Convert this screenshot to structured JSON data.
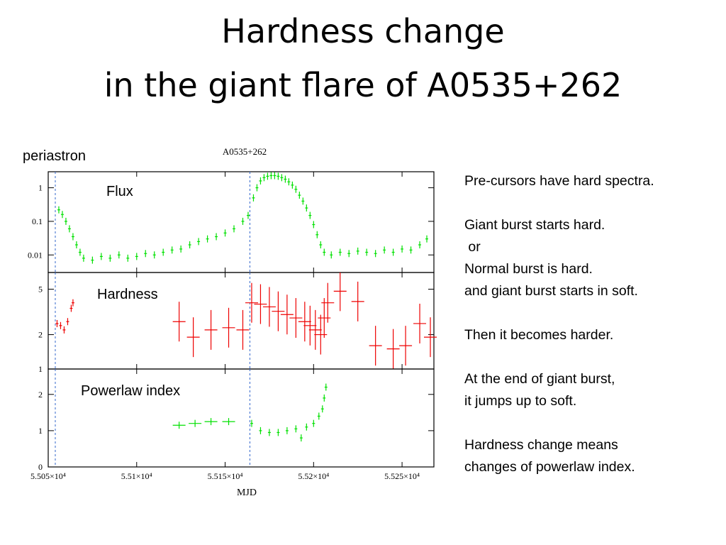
{
  "slide": {
    "title_line1": "Hardness change",
    "title_line2": "in the giant flare of A0535+262",
    "periastron_label": "periastron",
    "notes": [
      "Pre-cursors have hard spectra.",
      "",
      "Giant burst starts hard.",
      " or",
      "Normal burst is hard.",
      "and giant burst starts in soft.",
      "",
      "Then it becomes harder.",
      "",
      "At the end of giant burst,",
      "it jumps up to soft.",
      "",
      "Hardness change means",
      "changes of powerlaw index."
    ]
  },
  "colors": {
    "flux": "#00e000",
    "hardness": "#ee0000",
    "index": "#00e000",
    "periastron": "#3366cc",
    "axis": "#000000"
  },
  "chart_data": [
    {
      "type": "scatter",
      "title": "A0535+262",
      "panel_label": "Flux",
      "xlabel": "",
      "ylabel": "",
      "yscale": "log",
      "xlim": [
        55050,
        55268
      ],
      "ylim": [
        0.003,
        3.0
      ],
      "yticks": [
        {
          "v": 0.01,
          "label": "0.01"
        },
        {
          "v": 0.1,
          "label": "0.1"
        },
        {
          "v": 1,
          "label": "1"
        }
      ],
      "periastron_mjd": [
        55054,
        55164
      ],
      "series": [
        {
          "name": "",
          "color": "#00e000",
          "points": [
            [
              55056,
              0.22
            ],
            [
              55058,
              0.16
            ],
            [
              55060,
              0.1
            ],
            [
              55062,
              0.06
            ],
            [
              55064,
              0.035
            ],
            [
              55066,
              0.02
            ],
            [
              55068,
              0.012
            ],
            [
              55070,
              0.008
            ],
            [
              55075,
              0.007
            ],
            [
              55080,
              0.009
            ],
            [
              55085,
              0.008
            ],
            [
              55090,
              0.01
            ],
            [
              55095,
              0.008
            ],
            [
              55100,
              0.009
            ],
            [
              55105,
              0.011
            ],
            [
              55110,
              0.01
            ],
            [
              55115,
              0.012
            ],
            [
              55120,
              0.014
            ],
            [
              55125,
              0.015
            ],
            [
              55130,
              0.02
            ],
            [
              55135,
              0.025
            ],
            [
              55140,
              0.03
            ],
            [
              55145,
              0.035
            ],
            [
              55150,
              0.045
            ],
            [
              55155,
              0.06
            ],
            [
              55160,
              0.1
            ],
            [
              55163,
              0.15
            ],
            [
              55166,
              0.5
            ],
            [
              55168,
              1.0
            ],
            [
              55170,
              1.6
            ],
            [
              55172,
              2.0
            ],
            [
              55174,
              2.2
            ],
            [
              55176,
              2.3
            ],
            [
              55178,
              2.3
            ],
            [
              55180,
              2.2
            ],
            [
              55182,
              2.0
            ],
            [
              55184,
              1.8
            ],
            [
              55186,
              1.5
            ],
            [
              55188,
              1.2
            ],
            [
              55190,
              0.9
            ],
            [
              55192,
              0.6
            ],
            [
              55194,
              0.4
            ],
            [
              55196,
              0.25
            ],
            [
              55198,
              0.15
            ],
            [
              55200,
              0.08
            ],
            [
              55202,
              0.04
            ],
            [
              55204,
              0.02
            ],
            [
              55206,
              0.012
            ],
            [
              55210,
              0.01
            ],
            [
              55215,
              0.012
            ],
            [
              55220,
              0.011
            ],
            [
              55225,
              0.013
            ],
            [
              55230,
              0.012
            ],
            [
              55235,
              0.011
            ],
            [
              55240,
              0.014
            ],
            [
              55245,
              0.012
            ],
            [
              55250,
              0.015
            ],
            [
              55255,
              0.014
            ],
            [
              55260,
              0.02
            ],
            [
              55264,
              0.03
            ]
          ]
        }
      ]
    },
    {
      "type": "scatter",
      "panel_label": "Hardness",
      "xlabel": "",
      "ylabel": "",
      "yscale": "log",
      "xlim": [
        55050,
        55268
      ],
      "ylim": [
        1,
        7
      ],
      "yticks": [
        {
          "v": 1,
          "label": "1"
        },
        {
          "v": 2,
          "label": "2"
        },
        {
          "v": 5,
          "label": "5"
        }
      ],
      "periastron_mjd": [
        55054,
        55164
      ],
      "series": [
        {
          "name": "",
          "color": "#ee0000",
          "points": [
            [
              55055,
              2.5
            ],
            [
              55057,
              2.4
            ],
            [
              55059,
              2.2
            ],
            [
              55061,
              2.6
            ],
            [
              55063,
              3.4
            ],
            [
              55064,
              3.8
            ],
            [
              55124,
              2.6
            ],
            [
              55132,
              1.9
            ],
            [
              55142,
              2.2
            ],
            [
              55152,
              2.3
            ],
            [
              55160,
              2.2
            ],
            [
              55165,
              3.8
            ],
            [
              55170,
              3.7
            ],
            [
              55175,
              3.5
            ],
            [
              55180,
              3.2
            ],
            [
              55185,
              3.0
            ],
            [
              55190,
              2.8
            ],
            [
              55195,
              2.6
            ],
            [
              55198,
              2.4
            ],
            [
              55201,
              2.2
            ],
            [
              55204,
              2.0
            ],
            [
              55206,
              2.8
            ],
            [
              55208,
              3.8
            ],
            [
              55215,
              4.8
            ],
            [
              55225,
              3.9
            ],
            [
              55235,
              1.6
            ],
            [
              55245,
              1.5
            ],
            [
              55252,
              1.6
            ],
            [
              55260,
              2.5
            ],
            [
              55266,
              1.9
            ]
          ]
        }
      ]
    },
    {
      "type": "scatter",
      "panel_label": "Powerlaw index",
      "xlabel": "MJD",
      "ylabel": "",
      "xlim": [
        55050,
        55268
      ],
      "ylim": [
        0,
        2.7
      ],
      "xticks": [
        {
          "v": 55050,
          "label": "5.505×10⁴"
        },
        {
          "v": 55100,
          "label": "5.51×10⁴"
        },
        {
          "v": 55150,
          "label": "5.515×10⁴"
        },
        {
          "v": 55200,
          "label": "5.52×10⁴"
        },
        {
          "v": 55250,
          "label": "5.525×10⁴"
        }
      ],
      "yticks": [
        {
          "v": 0,
          "label": "0"
        },
        {
          "v": 1,
          "label": "1"
        },
        {
          "v": 2,
          "label": "2"
        }
      ],
      "periastron_mjd": [
        55054,
        55164
      ],
      "series": [
        {
          "name": "",
          "color": "#00e000",
          "points": [
            [
              55124,
              1.15
            ],
            [
              55133,
              1.2
            ],
            [
              55142,
              1.25
            ],
            [
              55152,
              1.25
            ],
            [
              55165,
              1.2
            ],
            [
              55170,
              1.0
            ],
            [
              55175,
              0.95
            ],
            [
              55180,
              0.95
            ],
            [
              55185,
              1.0
            ],
            [
              55190,
              1.05
            ],
            [
              55193,
              0.8
            ],
            [
              55196,
              1.1
            ],
            [
              55200,
              1.2
            ],
            [
              55203,
              1.4
            ],
            [
              55205,
              1.6
            ],
            [
              55206,
              1.9
            ],
            [
              55207,
              2.2
            ]
          ]
        }
      ]
    }
  ]
}
